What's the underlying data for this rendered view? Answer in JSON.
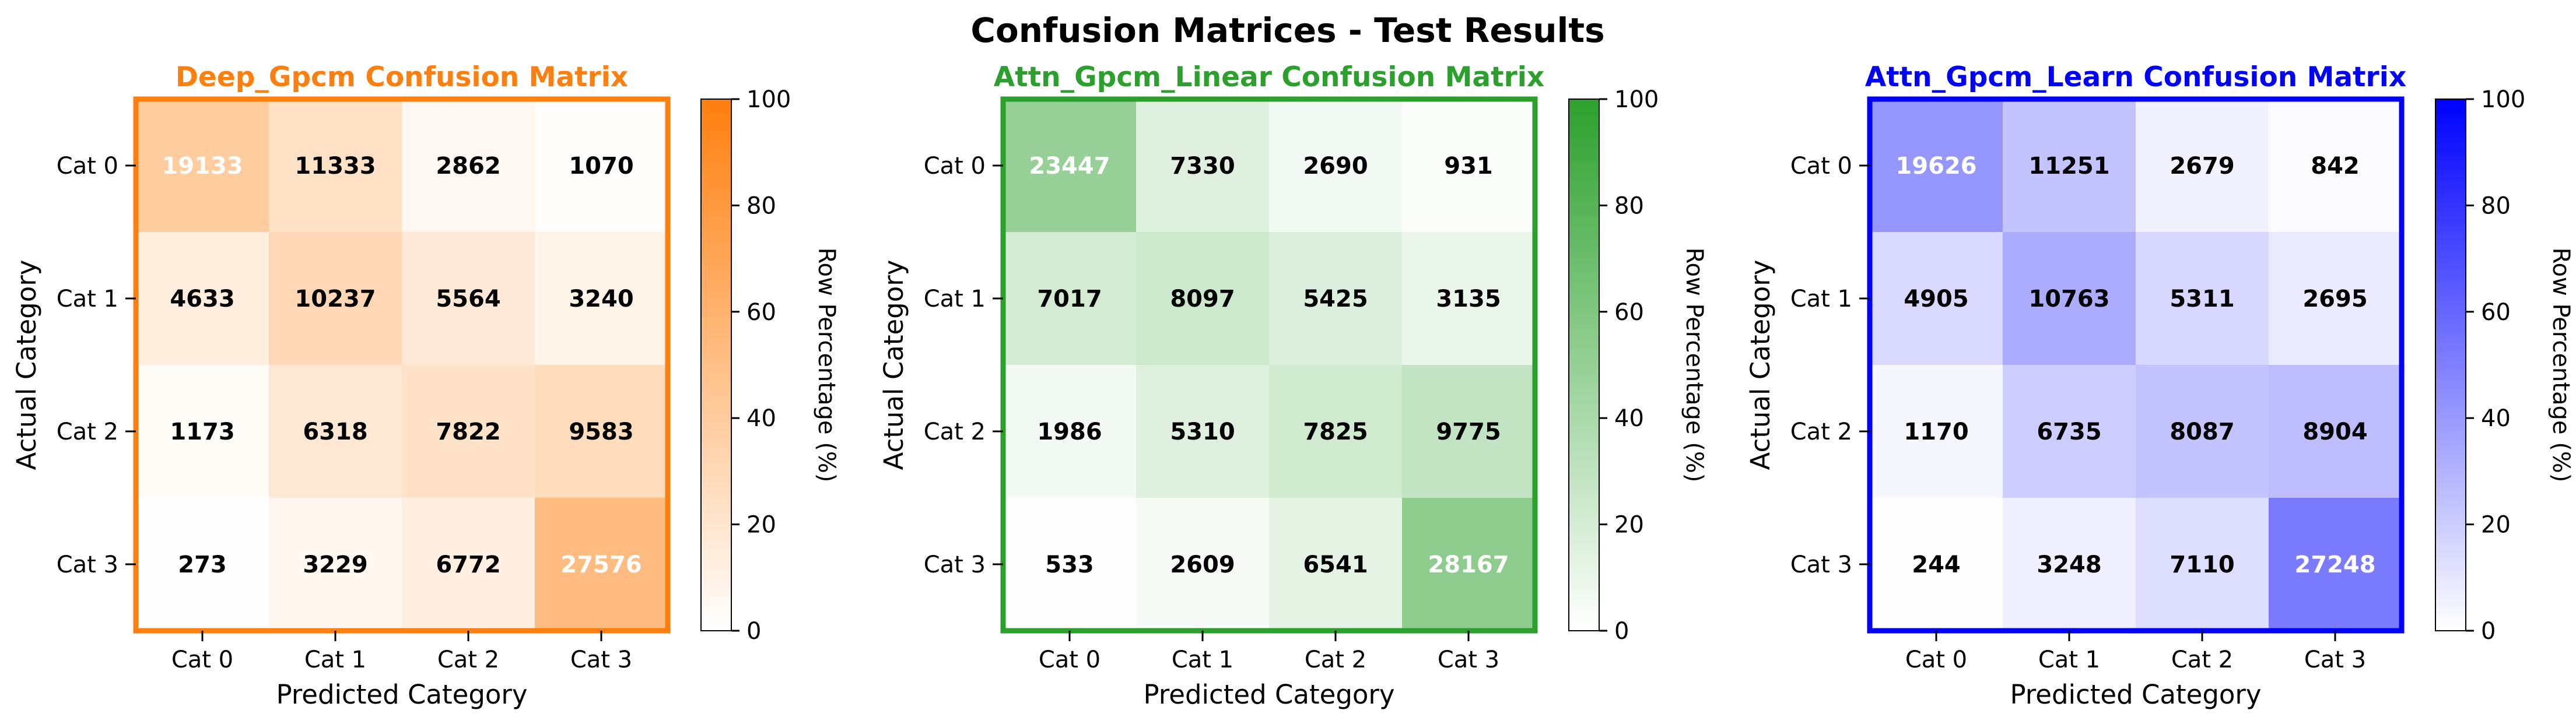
{
  "figure": {
    "title": "Confusion Matrices - Test Results"
  },
  "chart_data": [
    {
      "type": "heatmap",
      "title": "Deep_Gpcm Confusion Matrix",
      "accent": "#ff7f0e",
      "xlabel": "Predicted Category",
      "ylabel": "Actual Category",
      "x_categories": [
        "Cat 0",
        "Cat 1",
        "Cat 2",
        "Cat 3"
      ],
      "y_categories": [
        "Cat 0",
        "Cat 1",
        "Cat 2",
        "Cat 3"
      ],
      "matrix": [
        [
          19133,
          11333,
          2862,
          1070
        ],
        [
          4633,
          10237,
          5564,
          3240
        ],
        [
          1173,
          6318,
          7822,
          9583
        ],
        [
          273,
          3229,
          6772,
          27576
        ]
      ],
      "colorbar": {
        "label": "Row Percentage (%)",
        "range": [
          0,
          100
        ],
        "ticks": [
          0,
          20,
          40,
          60,
          80,
          100
        ]
      }
    },
    {
      "type": "heatmap",
      "title": "Attn_Gpcm_Linear Confusion Matrix",
      "accent": "#2ca02c",
      "xlabel": "Predicted Category",
      "ylabel": "Actual Category",
      "x_categories": [
        "Cat 0",
        "Cat 1",
        "Cat 2",
        "Cat 3"
      ],
      "y_categories": [
        "Cat 0",
        "Cat 1",
        "Cat 2",
        "Cat 3"
      ],
      "matrix": [
        [
          23447,
          7330,
          2690,
          931
        ],
        [
          7017,
          8097,
          5425,
          3135
        ],
        [
          1986,
          5310,
          7825,
          9775
        ],
        [
          533,
          2609,
          6541,
          28167
        ]
      ],
      "colorbar": {
        "label": "Row Percentage (%)",
        "range": [
          0,
          100
        ],
        "ticks": [
          0,
          20,
          40,
          60,
          80,
          100
        ]
      }
    },
    {
      "type": "heatmap",
      "title": "Attn_Gpcm_Learn Confusion Matrix",
      "accent": "#0000ff",
      "xlabel": "Predicted Category",
      "ylabel": "Actual Category",
      "x_categories": [
        "Cat 0",
        "Cat 1",
        "Cat 2",
        "Cat 3"
      ],
      "y_categories": [
        "Cat 0",
        "Cat 1",
        "Cat 2",
        "Cat 3"
      ],
      "matrix": [
        [
          19626,
          11251,
          2679,
          842
        ],
        [
          4905,
          10763,
          5311,
          2695
        ],
        [
          1170,
          6735,
          8087,
          8904
        ],
        [
          244,
          3248,
          7110,
          27248
        ]
      ],
      "colorbar": {
        "label": "Row Percentage (%)",
        "range": [
          0,
          100
        ],
        "ticks": [
          0,
          20,
          40,
          60,
          80,
          100
        ]
      }
    }
  ]
}
